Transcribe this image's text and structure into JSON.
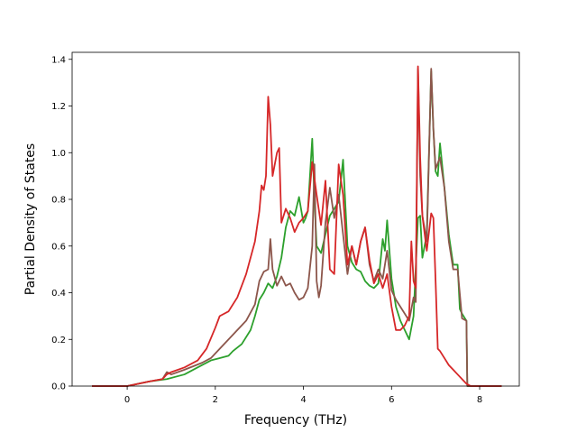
{
  "chart_data": {
    "type": "line",
    "title": "",
    "xlabel": "Frequency (THz)",
    "ylabel": "Partial Density of States",
    "xlim": [
      -1.25,
      8.9
    ],
    "ylim": [
      0,
      1.43
    ],
    "xticks": [
      0,
      2,
      4,
      6,
      8
    ],
    "yticks": [
      0.0,
      0.2,
      0.4,
      0.6,
      0.8,
      1.0,
      1.2,
      1.4
    ],
    "ytick_labels": [
      "0.0",
      "0.2",
      "0.4",
      "0.6",
      "0.8",
      "1.0",
      "1.2",
      "1.4"
    ],
    "grid": false,
    "legend": "none",
    "series": [
      {
        "color": "#2ca02c",
        "x": [
          -0.8,
          0.0,
          0.5,
          0.9,
          1.3,
          1.7,
          1.9,
          2.1,
          2.3,
          2.4,
          2.6,
          2.8,
          2.9,
          3.0,
          3.1,
          3.2,
          3.3,
          3.4,
          3.5,
          3.6,
          3.7,
          3.8,
          3.9,
          4.0,
          4.05,
          4.1,
          4.2,
          4.25,
          4.3,
          4.4,
          4.5,
          4.6,
          4.7,
          4.8,
          4.9,
          5.0,
          5.1,
          5.2,
          5.3,
          5.4,
          5.5,
          5.6,
          5.7,
          5.8,
          5.85,
          5.9,
          6.0,
          6.1,
          6.2,
          6.3,
          6.4,
          6.5,
          6.6,
          6.65,
          6.7,
          6.8,
          6.9,
          6.95,
          7.0,
          7.05,
          7.1,
          7.2,
          7.3,
          7.4,
          7.5,
          7.55,
          7.6,
          7.7,
          7.72,
          7.8,
          8.5
        ],
        "values": [
          0.0,
          0.0,
          0.02,
          0.03,
          0.05,
          0.09,
          0.11,
          0.12,
          0.13,
          0.15,
          0.18,
          0.24,
          0.3,
          0.37,
          0.4,
          0.44,
          0.42,
          0.47,
          0.55,
          0.68,
          0.75,
          0.73,
          0.81,
          0.7,
          0.72,
          0.75,
          1.06,
          0.8,
          0.6,
          0.57,
          0.65,
          0.73,
          0.76,
          0.79,
          0.97,
          0.6,
          0.53,
          0.5,
          0.49,
          0.45,
          0.43,
          0.42,
          0.44,
          0.63,
          0.58,
          0.71,
          0.46,
          0.34,
          0.28,
          0.24,
          0.2,
          0.3,
          0.72,
          0.73,
          0.55,
          0.65,
          1.35,
          1.1,
          0.92,
          0.9,
          1.04,
          0.85,
          0.65,
          0.52,
          0.52,
          0.33,
          0.31,
          0.28,
          0.0,
          0.0,
          0.0
        ]
      },
      {
        "color": "#8c564b",
        "x": [
          -0.8,
          0.0,
          0.5,
          0.8,
          0.9,
          1.0,
          1.3,
          1.7,
          1.9,
          2.1,
          2.3,
          2.5,
          2.7,
          2.9,
          3.0,
          3.1,
          3.2,
          3.25,
          3.3,
          3.4,
          3.5,
          3.6,
          3.7,
          3.8,
          3.9,
          4.0,
          4.1,
          4.2,
          4.25,
          4.3,
          4.35,
          4.4,
          4.5,
          4.6,
          4.7,
          4.8,
          4.9,
          5.0,
          5.1,
          5.2,
          5.3,
          5.4,
          5.5,
          5.6,
          5.7,
          5.8,
          5.9,
          6.0,
          6.1,
          6.2,
          6.3,
          6.4,
          6.5,
          6.55,
          6.6,
          6.65,
          6.7,
          6.8,
          6.9,
          6.95,
          7.0,
          7.1,
          7.2,
          7.3,
          7.4,
          7.5,
          7.6,
          7.7,
          7.72,
          7.8,
          8.5
        ],
        "values": [
          0.0,
          0.0,
          0.02,
          0.03,
          0.06,
          0.05,
          0.07,
          0.1,
          0.12,
          0.16,
          0.2,
          0.24,
          0.28,
          0.35,
          0.45,
          0.49,
          0.5,
          0.63,
          0.5,
          0.43,
          0.47,
          0.43,
          0.44,
          0.4,
          0.37,
          0.38,
          0.42,
          0.6,
          0.95,
          0.45,
          0.38,
          0.43,
          0.7,
          0.85,
          0.72,
          0.82,
          0.65,
          0.48,
          0.6,
          0.52,
          0.62,
          0.68,
          0.52,
          0.45,
          0.5,
          0.46,
          0.58,
          0.41,
          0.37,
          0.34,
          0.31,
          0.28,
          0.38,
          0.36,
          1.36,
          0.9,
          0.73,
          0.62,
          1.36,
          1.1,
          0.93,
          0.98,
          0.85,
          0.62,
          0.5,
          0.5,
          0.29,
          0.28,
          0.0,
          0.0,
          0.0
        ]
      },
      {
        "color": "#d62728",
        "x": [
          -0.8,
          0.0,
          0.5,
          0.8,
          0.9,
          1.0,
          1.3,
          1.6,
          1.8,
          2.0,
          2.1,
          2.3,
          2.5,
          2.7,
          2.9,
          3.0,
          3.05,
          3.1,
          3.15,
          3.2,
          3.25,
          3.3,
          3.35,
          3.4,
          3.45,
          3.5,
          3.6,
          3.7,
          3.8,
          3.9,
          4.0,
          4.1,
          4.2,
          4.3,
          4.4,
          4.5,
          4.6,
          4.7,
          4.8,
          4.9,
          5.0,
          5.1,
          5.2,
          5.3,
          5.4,
          5.5,
          5.6,
          5.7,
          5.8,
          5.9,
          6.0,
          6.1,
          6.2,
          6.3,
          6.4,
          6.45,
          6.5,
          6.55,
          6.6,
          6.65,
          6.7,
          6.8,
          6.9,
          6.95,
          7.0,
          7.05,
          7.1,
          7.2,
          7.3,
          7.4,
          7.5,
          7.6,
          7.7,
          7.8,
          8.5
        ],
        "values": [
          0.0,
          0.0,
          0.02,
          0.03,
          0.05,
          0.06,
          0.08,
          0.11,
          0.16,
          0.25,
          0.3,
          0.32,
          0.38,
          0.48,
          0.62,
          0.75,
          0.86,
          0.84,
          0.9,
          1.24,
          1.12,
          0.9,
          0.95,
          1.0,
          1.02,
          0.7,
          0.76,
          0.72,
          0.66,
          0.7,
          0.72,
          0.75,
          0.96,
          0.82,
          0.69,
          0.88,
          0.5,
          0.48,
          0.95,
          0.82,
          0.52,
          0.6,
          0.52,
          0.62,
          0.68,
          0.54,
          0.44,
          0.48,
          0.42,
          0.48,
          0.34,
          0.24,
          0.24,
          0.26,
          0.3,
          0.62,
          0.45,
          0.42,
          1.37,
          0.98,
          0.73,
          0.58,
          0.74,
          0.72,
          0.45,
          0.16,
          0.15,
          0.12,
          0.09,
          0.07,
          0.05,
          0.03,
          0.01,
          0.0,
          0.0
        ]
      }
    ]
  }
}
